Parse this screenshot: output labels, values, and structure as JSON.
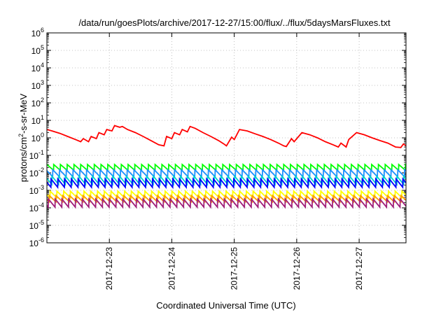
{
  "chart_data": {
    "type": "line",
    "title": "/data/run/goesPlots/archive/2017-12-27/15:00/flux/../flux/5daysMarsFluxes.txt",
    "xlabel": "Coordinated Universal Time (UTC)",
    "ylabel_parts": {
      "pre": "protons/cm",
      "sup": "2",
      "post": "-s-sr-MeV"
    },
    "y_scale": "log",
    "ylim": [
      1e-06,
      1000000.0
    ],
    "y_ticks": [
      {
        "value": 1e-06,
        "base": "10",
        "exp": "-6"
      },
      {
        "value": 1e-05,
        "base": "10",
        "exp": "-5"
      },
      {
        "value": 0.0001,
        "base": "10",
        "exp": "-4"
      },
      {
        "value": 0.001,
        "base": "10",
        "exp": "-3"
      },
      {
        "value": 0.01,
        "base": "10",
        "exp": "-2"
      },
      {
        "value": 0.1,
        "base": "10",
        "exp": "-1"
      },
      {
        "value": 1,
        "base": "10",
        "exp": "0"
      },
      {
        "value": 10,
        "base": "10",
        "exp": "1"
      },
      {
        "value": 100,
        "base": "10",
        "exp": "2"
      },
      {
        "value": 1000,
        "base": "10",
        "exp": "3"
      },
      {
        "value": 10000,
        "base": "10",
        "exp": "4"
      },
      {
        "value": 100000,
        "base": "10",
        "exp": "5"
      },
      {
        "value": 1000000,
        "base": "10",
        "exp": "6"
      }
    ],
    "xlim": [
      "2017-12-22T00:00",
      "2017-12-27T18:00"
    ],
    "x_ticks": [
      "2017-12-23",
      "2017-12-24",
      "2017-12-25",
      "2017-12-26",
      "2017-12-27"
    ],
    "grid": true,
    "series": [
      {
        "color": "#ff0000",
        "x": [
          "2017-12-22T00:00",
          "2017-12-22T02:00",
          "2017-12-22T05:00",
          "2017-12-22T08:00",
          "2017-12-22T11:00",
          "2017-12-22T13:00",
          "2017-12-22T14:00",
          "2017-12-22T16:00",
          "2017-12-22T17:00",
          "2017-12-22T19:00",
          "2017-12-22T20:00",
          "2017-12-22T22:00",
          "2017-12-22T23:00",
          "2017-12-23T01:00",
          "2017-12-23T02:00",
          "2017-12-23T04:00",
          "2017-12-23T05:00",
          "2017-12-23T07:00",
          "2017-12-23T10:00",
          "2017-12-23T13:00",
          "2017-12-23T16:00",
          "2017-12-23T19:00",
          "2017-12-23T21:00",
          "2017-12-23T22:00",
          "2017-12-24T00:00",
          "2017-12-24T01:00",
          "2017-12-24T03:00",
          "2017-12-24T04:00",
          "2017-12-24T06:00",
          "2017-12-24T07:00",
          "2017-12-24T09:00",
          "2017-12-24T12:00",
          "2017-12-24T15:00",
          "2017-12-24T18:00",
          "2017-12-24T20:00",
          "2017-12-24T21:00",
          "2017-12-24T23:00",
          "2017-12-25T00:00",
          "2017-12-25T02:00",
          "2017-12-25T05:00",
          "2017-12-25T08:00",
          "2017-12-25T11:00",
          "2017-12-25T14:00",
          "2017-12-25T17:00",
          "2017-12-25T19:00",
          "2017-12-25T20:00",
          "2017-12-25T22:00",
          "2017-12-25T23:00",
          "2017-12-26T02:00",
          "2017-12-26T05:00",
          "2017-12-26T08:00",
          "2017-12-26T11:00",
          "2017-12-26T14:00",
          "2017-12-26T16:00",
          "2017-12-26T17:00",
          "2017-12-26T19:00",
          "2017-12-26T20:00",
          "2017-12-26T23:00",
          "2017-12-27T02:00",
          "2017-12-27T05:00",
          "2017-12-27T08:00",
          "2017-12-27T11:00",
          "2017-12-27T14:00",
          "2017-12-27T16:00",
          "2017-12-27T17:00",
          "2017-12-27T18:00"
        ],
        "y": [
          3,
          2.5,
          1.8,
          1.2,
          0.8,
          0.6,
          0.9,
          0.6,
          1.2,
          0.9,
          2,
          1.5,
          3,
          2.5,
          5,
          4,
          4.5,
          3,
          2,
          1.2,
          0.7,
          0.4,
          0.35,
          1.2,
          0.9,
          2,
          1.5,
          3,
          2.2,
          4.5,
          3.5,
          2,
          1.2,
          0.7,
          0.45,
          0.35,
          1.1,
          0.8,
          3,
          2.5,
          1.7,
          1.2,
          0.8,
          0.5,
          0.35,
          0.32,
          0.9,
          0.6,
          2,
          1.5,
          1,
          0.6,
          0.4,
          0.3,
          0.5,
          0.3,
          0.8,
          2,
          1.5,
          1,
          0.7,
          0.5,
          0.3,
          0.28,
          0.45,
          0.35
        ]
      },
      {
        "color": "#00ff00",
        "x": [],
        "y": []
      },
      {
        "color": "#1e90ff",
        "x": [],
        "y": []
      },
      {
        "color": "#00cfcf",
        "x": [],
        "y": []
      },
      {
        "color": "#0000ff",
        "x": [],
        "y": []
      },
      {
        "color": "#ffff00",
        "x": [],
        "y": []
      },
      {
        "color": "#ff9900",
        "x": [],
        "y": []
      },
      {
        "color": "#a0207a",
        "x": [],
        "y": []
      }
    ],
    "sawtooth": [
      {
        "color": "#00ff00",
        "peak": 0.03,
        "trough": 0.014
      },
      {
        "color": "#1e90ff",
        "peak": 0.015,
        "trough": 0.006
      },
      {
        "color": "#00cfcf",
        "peak": 0.0065,
        "trough": 0.0022
      },
      {
        "color": "#0000ff",
        "peak": 0.0045,
        "trough": 0.0015
      },
      {
        "color": "#ffff00",
        "peak": 0.0009,
        "trough": 0.00038
      },
      {
        "color": "#ff9900",
        "peak": 0.0005,
        "trough": 0.00022
      },
      {
        "color": "#a0207a",
        "peak": 0.00032,
        "trough": 0.00011
      }
    ],
    "sawtooth_period_hours": 2.6
  }
}
